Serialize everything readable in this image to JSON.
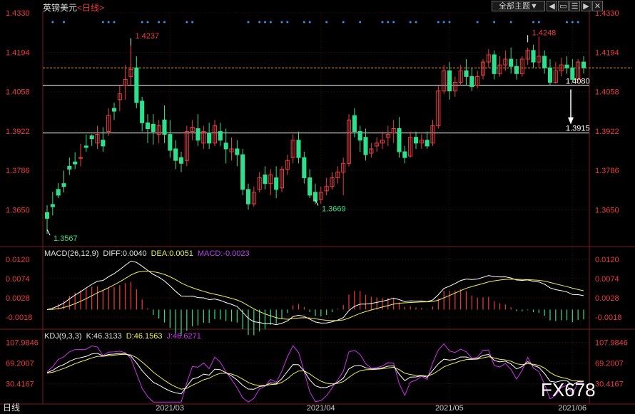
{
  "header": {
    "symbol": "英镑美元",
    "period": "日线",
    "theme_button": "全部主题",
    "theme_arrow": "▼",
    "icons": [
      "nav-left-icon",
      "window-icon",
      "list-icon",
      "nav-right-icon",
      "close-icon"
    ]
  },
  "colors": {
    "up": "#f03c3c",
    "down": "#2ee08c",
    "grid": "#7a1c1c",
    "axis_text": "#f03c3c",
    "dif": "#ffffff",
    "dea": "#f0f050",
    "macd_label": "#c040f0",
    "k": "#ffffff",
    "d": "#f0f050",
    "j": "#d030f0",
    "dots": "#3b8ff0",
    "ref": "#f0a020"
  },
  "chart_data": [
    {
      "type": "candlestick",
      "title": "英镑美元 日线",
      "ylim": [
        1.353,
        1.433
      ],
      "y_ticks": [
        "1.4330",
        "1.4194",
        "1.4058",
        "1.3922",
        "1.3786",
        "1.3650"
      ],
      "x_ticks": [
        "2021/03",
        "2021/04",
        "2021/05",
        "2021/06"
      ],
      "horizontal_lines": [
        1.414,
        1.408,
        1.3915
      ],
      "annotations": [
        {
          "text": "1.4237",
          "value": 1.4237,
          "type": "high"
        },
        {
          "text": "1.3567",
          "value": 1.3567,
          "type": "low"
        },
        {
          "text": "1.3669",
          "value": 1.3669,
          "type": "low"
        },
        {
          "text": "1.4248",
          "value": 1.4248,
          "type": "high"
        },
        {
          "text": "1.4080",
          "value": 1.408,
          "type": "level"
        },
        {
          "text": "1.3915",
          "value": 1.3915,
          "type": "target"
        }
      ],
      "candles": [
        [
          1.364,
          1.3665,
          1.362,
          1.3567
        ],
        [
          1.3668,
          1.3712,
          1.366,
          1.363
        ],
        [
          1.372,
          1.3742,
          1.37,
          1.369
        ],
        [
          1.374,
          1.3785,
          1.373,
          1.371
        ],
        [
          1.38,
          1.383,
          1.379,
          1.377
        ],
        [
          1.3815,
          1.3848,
          1.3808,
          1.379
        ],
        [
          1.3828,
          1.3878,
          1.383,
          1.38
        ],
        [
          1.387,
          1.391,
          1.3865,
          1.385
        ],
        [
          1.3905,
          1.391,
          1.3895,
          1.387
        ],
        [
          1.388,
          1.394,
          1.391,
          1.386
        ],
        [
          1.389,
          1.3935,
          1.387,
          1.385
        ],
        [
          1.392,
          1.4,
          1.3975,
          1.3905
        ],
        [
          1.4,
          1.402,
          1.399,
          1.396
        ],
        [
          1.403,
          1.408,
          1.405,
          1.399
        ],
        [
          1.408,
          1.415,
          1.41,
          1.403
        ],
        [
          1.411,
          1.4237,
          1.4135,
          1.408
        ],
        [
          1.414,
          1.418,
          1.402,
          1.4
        ],
        [
          1.4025,
          1.404,
          1.395,
          1.392
        ],
        [
          1.395,
          1.398,
          1.393,
          1.388
        ],
        [
          1.3945,
          1.398,
          1.392,
          1.3875
        ],
        [
          1.391,
          1.396,
          1.394,
          1.388
        ],
        [
          1.396,
          1.401,
          1.391,
          1.388
        ],
        [
          1.391,
          1.396,
          1.3855,
          1.383
        ],
        [
          1.386,
          1.389,
          1.382,
          1.379
        ],
        [
          1.383,
          1.385,
          1.381,
          1.378
        ],
        [
          1.382,
          1.394,
          1.392,
          1.38
        ],
        [
          1.392,
          1.396,
          1.3935,
          1.389
        ],
        [
          1.393,
          1.398,
          1.389,
          1.387
        ],
        [
          1.388,
          1.394,
          1.392,
          1.386
        ],
        [
          1.3915,
          1.395,
          1.388,
          1.386
        ],
        [
          1.388,
          1.396,
          1.394,
          1.387
        ],
        [
          1.392,
          1.395,
          1.389,
          1.387
        ],
        [
          1.388,
          1.393,
          1.386,
          1.381
        ],
        [
          1.385,
          1.39,
          1.386,
          1.382
        ],
        [
          1.386,
          1.389,
          1.384,
          1.38
        ],
        [
          1.384,
          1.386,
          1.372,
          1.37
        ],
        [
          1.372,
          1.374,
          1.367,
          1.365
        ],
        [
          1.367,
          1.373,
          1.371,
          1.366
        ],
        [
          1.372,
          1.378,
          1.376,
          1.371
        ],
        [
          1.377,
          1.38,
          1.374,
          1.372
        ],
        [
          1.374,
          1.379,
          1.377,
          1.37
        ],
        [
          1.376,
          1.38,
          1.372,
          1.369
        ],
        [
          1.3725,
          1.38,
          1.379,
          1.371
        ],
        [
          1.379,
          1.384,
          1.382,
          1.377
        ],
        [
          1.383,
          1.391,
          1.389,
          1.381
        ],
        [
          1.389,
          1.392,
          1.383,
          1.381
        ],
        [
          1.383,
          1.385,
          1.376,
          1.374
        ],
        [
          1.376,
          1.379,
          1.37,
          1.369
        ],
        [
          1.371,
          1.374,
          1.368,
          1.3669
        ],
        [
          1.3685,
          1.373,
          1.371,
          1.367
        ],
        [
          1.3715,
          1.376,
          1.373,
          1.37
        ],
        [
          1.373,
          1.378,
          1.376,
          1.372
        ],
        [
          1.376,
          1.38,
          1.378,
          1.374
        ],
        [
          1.378,
          1.383,
          1.381,
          1.37
        ],
        [
          1.381,
          1.398,
          1.396,
          1.38
        ],
        [
          1.3975,
          1.4,
          1.392,
          1.39
        ],
        [
          1.392,
          1.394,
          1.389,
          1.385
        ],
        [
          1.39,
          1.393,
          1.384,
          1.382
        ],
        [
          1.3845,
          1.388,
          1.386,
          1.383
        ],
        [
          1.387,
          1.39,
          1.388,
          1.385
        ],
        [
          1.388,
          1.392,
          1.389,
          1.386
        ],
        [
          1.39,
          1.394,
          1.391,
          1.387
        ],
        [
          1.3915,
          1.396,
          1.393,
          1.388
        ],
        [
          1.393,
          1.397,
          1.385,
          1.383
        ],
        [
          1.385,
          1.387,
          1.383,
          1.381
        ],
        [
          1.3835,
          1.392,
          1.39,
          1.383
        ],
        [
          1.39,
          1.392,
          1.388,
          1.386
        ],
        [
          1.388,
          1.391,
          1.389,
          1.386
        ],
        [
          1.389,
          1.392,
          1.387,
          1.386
        ],
        [
          1.388,
          1.396,
          1.394,
          1.387
        ],
        [
          1.394,
          1.408,
          1.406,
          1.393
        ],
        [
          1.406,
          1.415,
          1.413,
          1.405
        ],
        [
          1.413,
          1.416,
          1.406,
          1.403
        ],
        [
          1.406,
          1.411,
          1.409,
          1.404
        ],
        [
          1.409,
          1.415,
          1.413,
          1.408
        ],
        [
          1.413,
          1.417,
          1.411,
          1.408
        ],
        [
          1.411,
          1.414,
          1.4075,
          1.406
        ],
        [
          1.408,
          1.413,
          1.411,
          1.407
        ],
        [
          1.4115,
          1.417,
          1.416,
          1.41
        ],
        [
          1.416,
          1.4205,
          1.4185,
          1.414
        ],
        [
          1.4185,
          1.42,
          1.412,
          1.41
        ],
        [
          1.412,
          1.418,
          1.415,
          1.411
        ],
        [
          1.415,
          1.42,
          1.417,
          1.413
        ],
        [
          1.417,
          1.421,
          1.4145,
          1.412
        ],
        [
          1.4145,
          1.417,
          1.412,
          1.41
        ],
        [
          1.412,
          1.418,
          1.417,
          1.411
        ],
        [
          1.417,
          1.421,
          1.42,
          1.415
        ],
        [
          1.42,
          1.422,
          1.416,
          1.414
        ],
        [
          1.416,
          1.4248,
          1.418,
          1.414
        ],
        [
          1.418,
          1.42,
          1.414,
          1.412
        ],
        [
          1.414,
          1.417,
          1.409,
          1.408
        ],
        [
          1.409,
          1.416,
          1.413,
          1.4085
        ],
        [
          1.413,
          1.4175,
          1.415,
          1.411
        ],
        [
          1.415,
          1.418,
          1.414,
          1.412
        ],
        [
          1.414,
          1.417,
          1.41,
          1.409
        ],
        [
          1.41,
          1.417,
          1.416,
          1.409
        ],
        [
          1.416,
          1.418,
          1.414,
          1.412
        ]
      ]
    },
    {
      "type": "macd",
      "params": "MACD(26,12,9)",
      "dif_label": "DIFF:0.0040",
      "dea_label": "DEA:0.0051",
      "macd_label": "MACD:-0.0023",
      "ylim": [
        -0.004,
        0.014
      ],
      "y_ticks": [
        "0.0120",
        "0.0074",
        "0.0028",
        "-0.0018"
      ]
    },
    {
      "type": "kdj",
      "params": "KDJ(9,3,3)",
      "k_label": "K:46.3133",
      "d_label": "D:46.1563",
      "j_label": "J:46.6271",
      "ylim": [
        -5,
        125
      ],
      "y_ticks": [
        "107.9846",
        "69.2007",
        "30.4167"
      ]
    }
  ],
  "footer": {
    "left_label": "日线",
    "watermark": "FX678"
  }
}
